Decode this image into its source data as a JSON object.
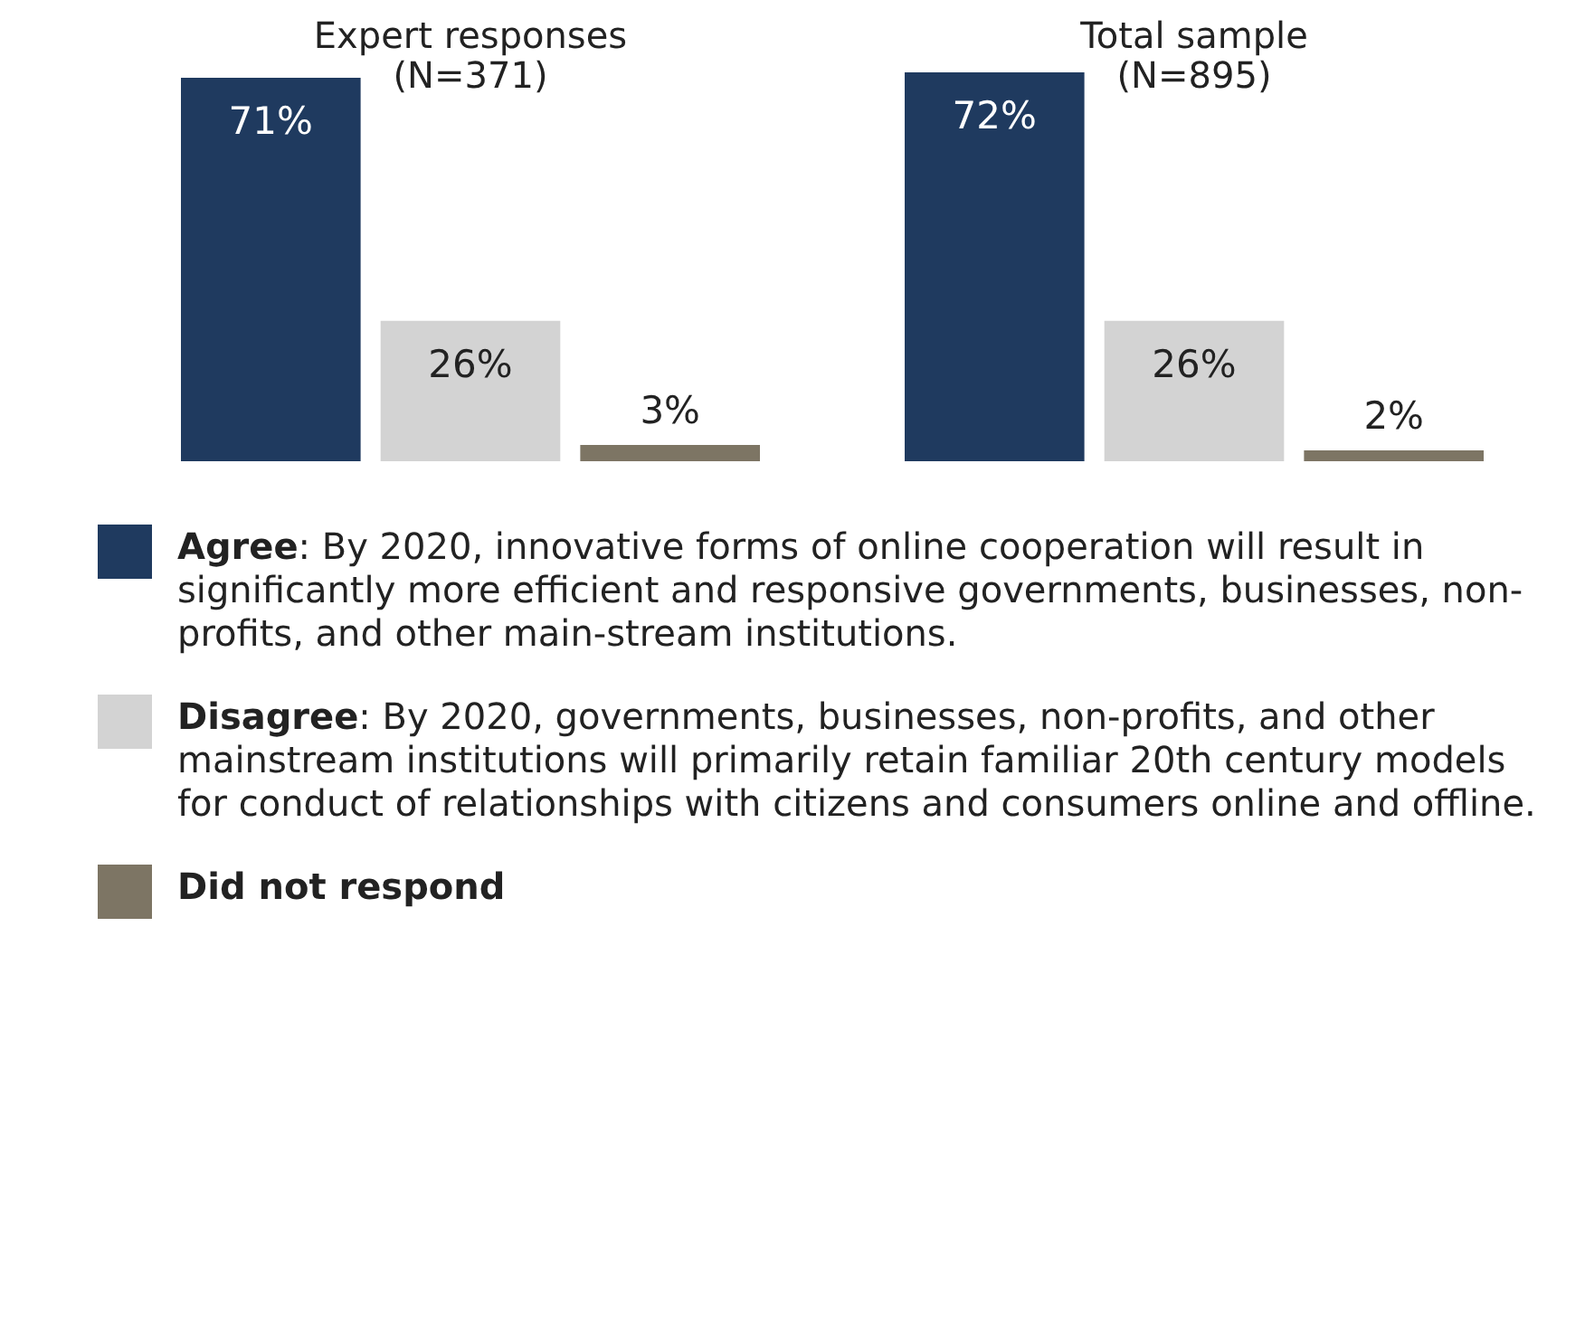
{
  "chart_data": {
    "type": "bar",
    "categories": [
      "Expert responses\n(N=371)",
      "Total sample\n(N=895)"
    ],
    "series": [
      {
        "name": "Agree: By 2020, innovative forms of online cooperation will result in significantly more efficient and responsive governments, businesses, non-profits, and other main-stream institutions.",
        "color": "#1f3a5f",
        "values": [
          71,
          72
        ],
        "value_labels": [
          "71%",
          "72%"
        ]
      },
      {
        "name": "Disagree: By 2020, governments, businesses, non-profits, and other mainstream institutions will primarily retain familiar 20th century models for conduct of relationships with citizens and consumers online and offline.",
        "color": "#d3d3d3",
        "values": [
          26,
          26
        ],
        "value_labels": [
          "26%",
          "26%"
        ]
      },
      {
        "name": "Did not respond",
        "color": "#7d7564",
        "values": [
          3,
          2
        ],
        "value_labels": [
          "3%",
          "2%"
        ]
      }
    ],
    "legend": "bottom",
    "grid": false
  }
}
